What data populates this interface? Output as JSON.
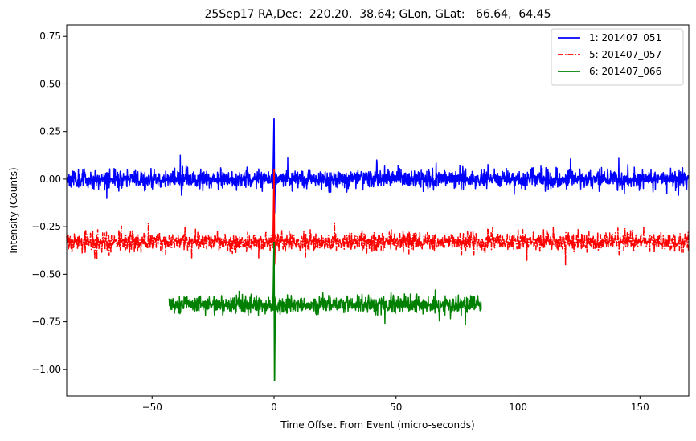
{
  "chart_data": {
    "type": "line",
    "title": "25Sep17 RA,Dec:  220.20,  38.64; GLon, GLat:   66.64,  64.45",
    "xlabel": "Time Offset From Event (micro-seconds)",
    "ylabel": "Intensity (Counts)",
    "xlim": [
      -85,
      170
    ],
    "ylim": [
      -1.14,
      0.81
    ],
    "xticks": [
      -50,
      0,
      50,
      100,
      150
    ],
    "xtick_labels": [
      "−50",
      "0",
      "50",
      "100",
      "150"
    ],
    "yticks": [
      -1.0,
      -0.75,
      -0.5,
      -0.25,
      0.0,
      0.25,
      0.5,
      0.75
    ],
    "ytick_labels": [
      "−1.00",
      "−0.75",
      "−0.50",
      "−0.25",
      "0.00",
      "0.25",
      "0.50",
      "0.75"
    ],
    "grid": false,
    "legend_position": "top-right",
    "series": [
      {
        "name": "1: 201407_051",
        "color": "#0000ff",
        "linestyle": "solid",
        "x_range": [
          -85,
          170
        ],
        "baseline": 0.0,
        "noise_amplitude": 0.05,
        "spike": {
          "x": 0.0,
          "peak": 0.32,
          "trough": -0.18
        }
      },
      {
        "name": "5: 201407_057",
        "color": "#ff0000",
        "linestyle": "dashdot",
        "x_range": [
          -85,
          170
        ],
        "baseline": -0.33,
        "noise_amplitude": 0.05,
        "spike": {
          "x": 0.0,
          "peak": 0.05,
          "trough": -0.45
        }
      },
      {
        "name": "6: 201407_066",
        "color": "#008000",
        "linestyle": "solid",
        "x_range": [
          -43,
          85
        ],
        "baseline": -0.66,
        "noise_amplitude": 0.05,
        "spike": {
          "x": 0.0,
          "peak": -0.33,
          "trough": -1.06
        }
      }
    ]
  }
}
